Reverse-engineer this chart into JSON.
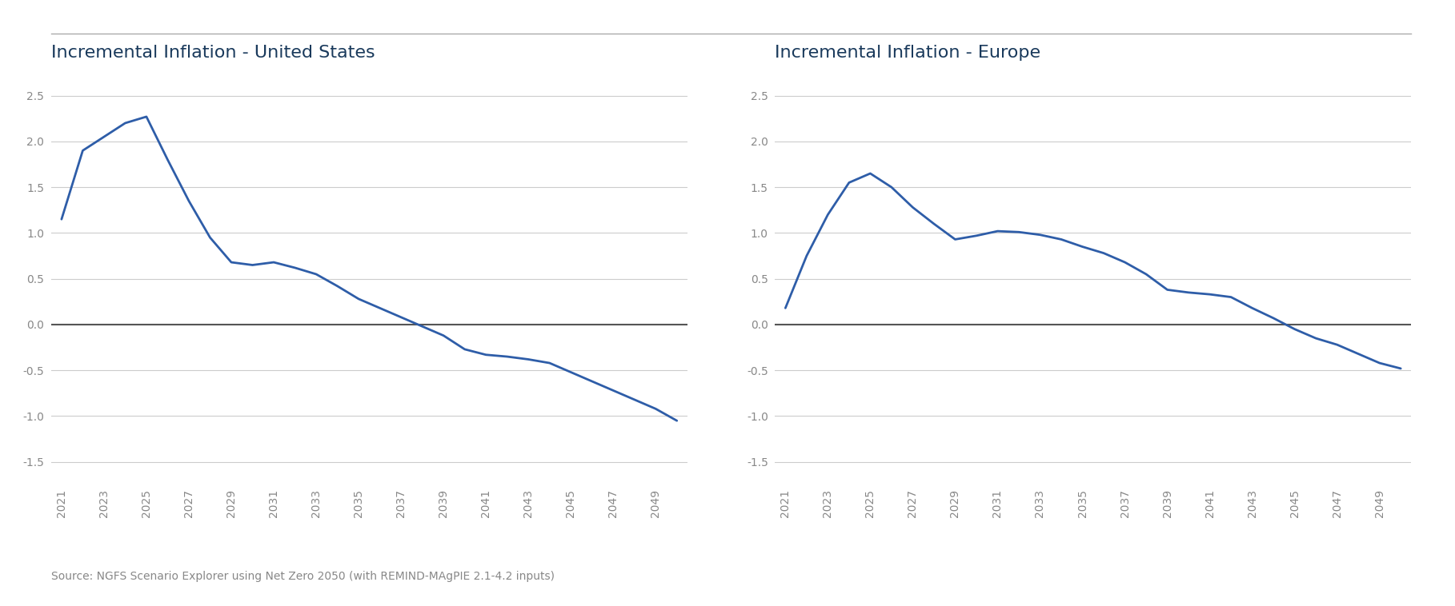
{
  "title_us": "Incremental Inflation - United States",
  "title_eu": "Incremental Inflation - Europe",
  "source": "Source: NGFS Scenario Explorer using Net Zero 2050 (with REMIND-MAgPIE 2.1-4.2 inputs)",
  "years": [
    2021,
    2022,
    2023,
    2024,
    2025,
    2026,
    2027,
    2028,
    2029,
    2030,
    2031,
    2032,
    2033,
    2034,
    2035,
    2036,
    2037,
    2038,
    2039,
    2040,
    2041,
    2042,
    2043,
    2044,
    2045,
    2046,
    2047,
    2048,
    2049,
    2050
  ],
  "us_values": [
    1.15,
    1.9,
    2.05,
    2.2,
    2.27,
    1.8,
    1.35,
    0.95,
    0.68,
    0.65,
    0.68,
    0.62,
    0.55,
    0.42,
    0.28,
    0.18,
    0.08,
    -0.02,
    -0.12,
    -0.27,
    -0.33,
    -0.35,
    -0.38,
    -0.42,
    -0.52,
    -0.62,
    -0.72,
    -0.82,
    -0.92,
    -1.05
  ],
  "eu_values": [
    0.18,
    0.75,
    1.2,
    1.55,
    1.65,
    1.5,
    1.28,
    1.1,
    0.93,
    0.97,
    1.02,
    1.01,
    0.98,
    0.93,
    0.85,
    0.78,
    0.68,
    0.55,
    0.38,
    0.35,
    0.33,
    0.3,
    0.18,
    0.07,
    -0.05,
    -0.15,
    -0.22,
    -0.32,
    -0.42,
    -0.48
  ],
  "x_ticks": [
    2021,
    2023,
    2025,
    2027,
    2029,
    2031,
    2033,
    2035,
    2037,
    2039,
    2041,
    2043,
    2045,
    2047,
    2049
  ],
  "ylim": [
    -1.75,
    2.75
  ],
  "yticks": [
    -1.5,
    -1.0,
    -0.5,
    0.0,
    0.5,
    1.0,
    1.5,
    2.0,
    2.5
  ],
  "line_color": "#2E5DA8",
  "zero_line_color": "#555555",
  "grid_color": "#cccccc",
  "title_color": "#1a3a5c",
  "tick_color": "#888888",
  "source_color": "#888888",
  "bg_color": "#ffffff",
  "line_width": 2.0,
  "title_fontsize": 16,
  "tick_fontsize": 10,
  "source_fontsize": 10,
  "top_line_color": "#aaaaaa",
  "xlim_left": 2020.5,
  "xlim_right": 2050.5
}
